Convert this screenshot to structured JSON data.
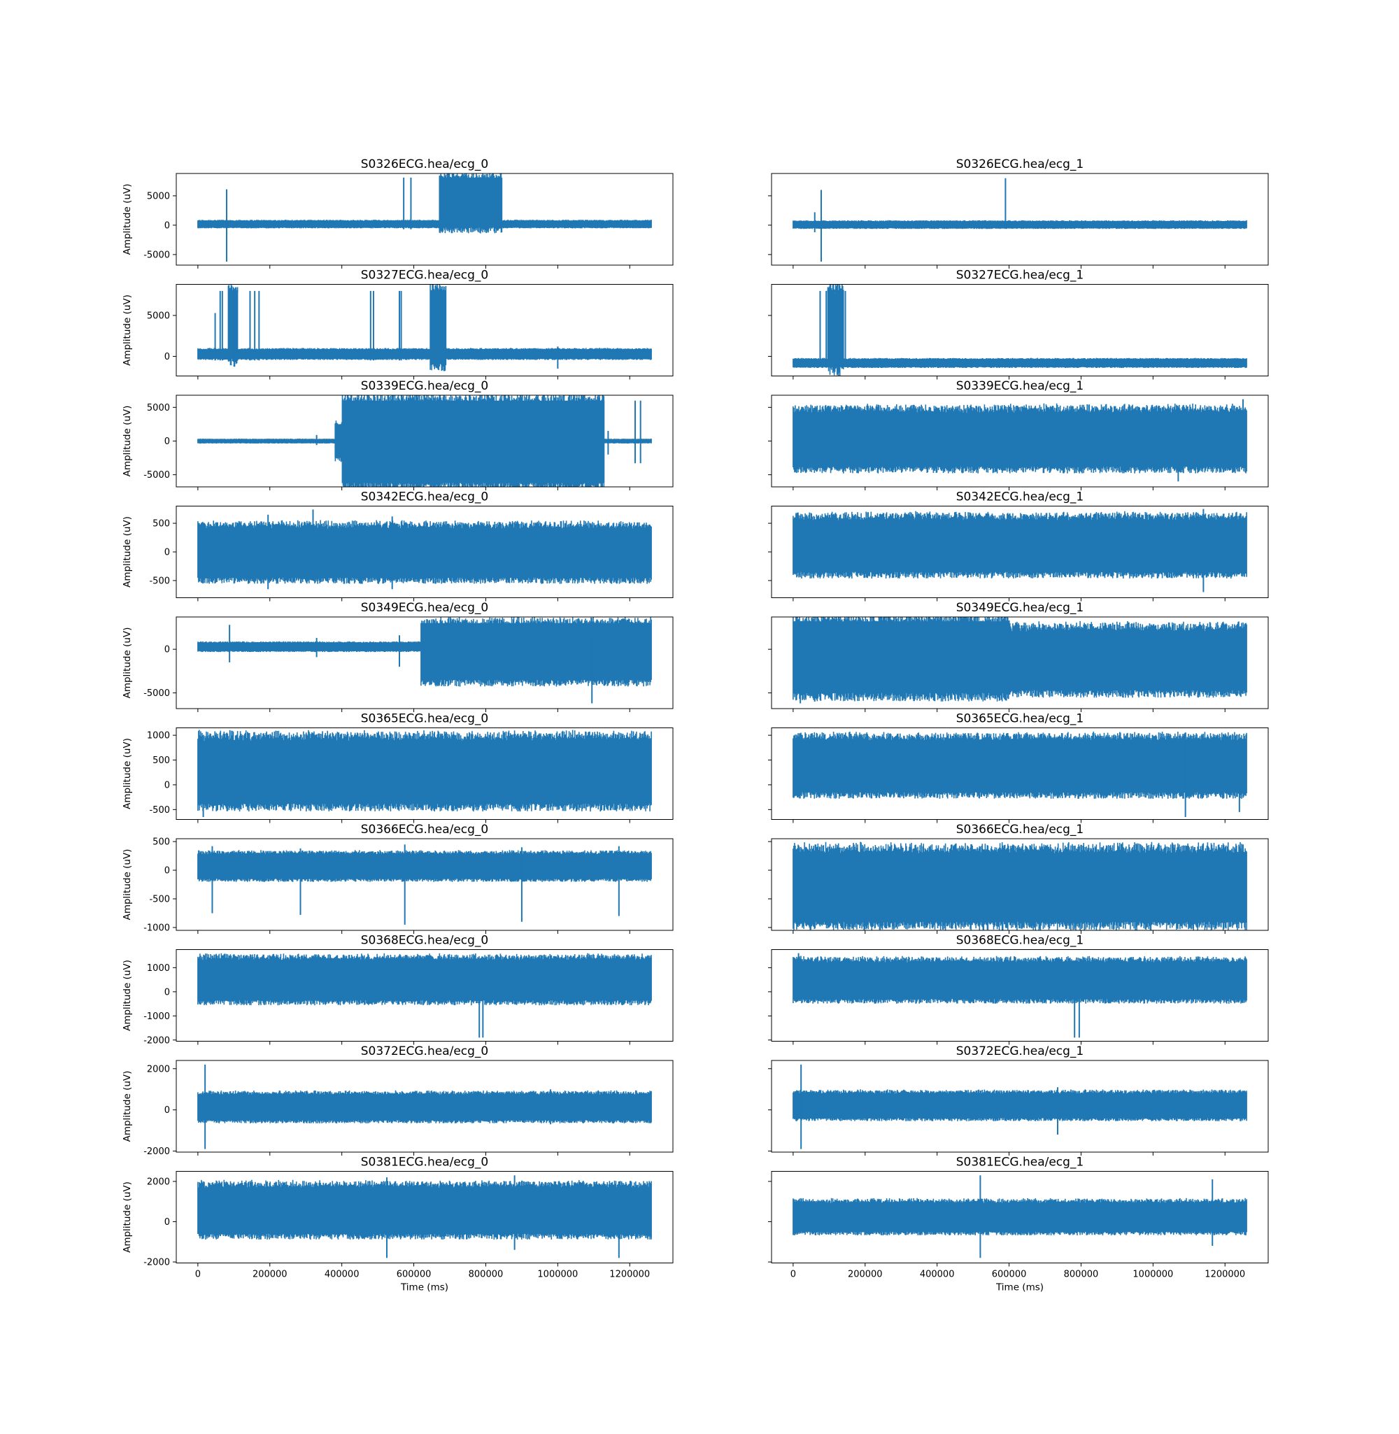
{
  "figure": {
    "xlabel": "Time (ms)",
    "ylabel": "Amplitude (uV)",
    "line_color": "#1f77b4"
  },
  "chart_data": [
    {
      "type": "line",
      "title": "S0326ECG.hea/ecg_0",
      "xlim": [
        -60000,
        1320000
      ],
      "ylim": [
        -6800,
        8800
      ],
      "yticks": [
        -5000,
        0,
        5000
      ],
      "x_range": [
        0,
        1260000
      ],
      "base": [
        -400,
        800
      ],
      "spikes": [
        [
          80000,
          -6200,
          6100
        ],
        [
          572000,
          -700,
          8100
        ],
        [
          592000,
          -700,
          8100
        ]
      ],
      "blocks": [
        [
          670000,
          845000,
          -400,
          8100
        ]
      ]
    },
    {
      "type": "line",
      "title": "S0326ECG.hea/ecg_1",
      "xlim": [
        -60000,
        1320000
      ],
      "ylim": [
        -6800,
        8800
      ],
      "yticks": [
        -5000,
        0,
        5000
      ],
      "x_range": [
        0,
        1260000
      ],
      "base": [
        -500,
        700
      ],
      "spikes": [
        [
          78000,
          -6200,
          6000
        ],
        [
          60000,
          -1200,
          2200
        ],
        [
          590000,
          -400,
          8000
        ]
      ],
      "blocks": []
    },
    {
      "type": "line",
      "title": "S0327ECG.hea/ecg_0",
      "xlim": [
        -60000,
        1320000
      ],
      "ylim": [
        -2400,
        8800
      ],
      "yticks": [
        0,
        5000
      ],
      "x_range": [
        0,
        1260000
      ],
      "base": [
        -300,
        900
      ],
      "spikes": [
        [
          48000,
          -500,
          5300
        ],
        [
          62000,
          -500,
          8000
        ],
        [
          68000,
          -500,
          8000
        ],
        [
          100000,
          -500,
          8000
        ],
        [
          108000,
          -500,
          8000
        ],
        [
          145000,
          -500,
          8000
        ],
        [
          158000,
          -500,
          8000
        ],
        [
          170000,
          -500,
          8000
        ],
        [
          480000,
          -500,
          8000
        ],
        [
          488000,
          -500,
          8000
        ],
        [
          560000,
          -500,
          8000
        ],
        [
          565000,
          -500,
          8000
        ],
        [
          1000000,
          -1500,
          1200
        ]
      ],
      "blocks": [
        [
          84000,
          112000,
          7800,
          8100
        ],
        [
          645000,
          690000,
          -800,
          8100
        ]
      ]
    },
    {
      "type": "line",
      "title": "S0327ECG.hea/ecg_1",
      "xlim": [
        -60000,
        1320000
      ],
      "ylim": [
        -2400,
        8800
      ],
      "yticks": [
        0,
        5000
      ],
      "x_range": [
        0,
        1260000
      ],
      "base": [
        -1300,
        -300
      ],
      "spikes": [
        [
          75000,
          -1300,
          8000
        ],
        [
          92000,
          -1300,
          8000
        ],
        [
          118000,
          -1300,
          8000
        ],
        [
          130000,
          -1300,
          8000
        ],
        [
          138000,
          -1300,
          8000
        ],
        [
          145000,
          -1300,
          8000
        ]
      ],
      "blocks": [
        [
          95000,
          140000,
          7800,
          8100
        ]
      ]
    },
    {
      "type": "line",
      "title": "S0339ECG.hea/ecg_0",
      "xlim": [
        -60000,
        1320000
      ],
      "ylim": [
        -6800,
        6800
      ],
      "yticks": [
        -5000,
        0,
        5000
      ],
      "x_range": [
        0,
        1260000
      ],
      "base": [
        -300,
        300
      ],
      "spikes": [
        [
          330000,
          -600,
          900
        ],
        [
          1140000,
          -2000,
          1500
        ],
        [
          1215000,
          -3300,
          6000
        ],
        [
          1230000,
          -3300,
          6000
        ]
      ],
      "blocks": [
        [
          400000,
          1130000,
          -6200,
          6000
        ],
        [
          380000,
          400000,
          -2500,
          2500
        ]
      ]
    },
    {
      "type": "line",
      "title": "S0339ECG.hea/ecg_1",
      "xlim": [
        -60000,
        1320000
      ],
      "ylim": [
        -6800,
        6800
      ],
      "yticks": [
        -5000,
        0,
        5000
      ],
      "x_range": [
        0,
        1260000
      ],
      "base": [
        -3800,
        4600
      ],
      "spikes": [
        [
          1070000,
          -6000,
          5000
        ],
        [
          1250000,
          -4000,
          6200
        ]
      ],
      "blocks": []
    },
    {
      "type": "line",
      "title": "S0342ECG.hea/ecg_0",
      "xlim": [
        -60000,
        1320000
      ],
      "ylim": [
        -800,
        800
      ],
      "yticks": [
        -500,
        0,
        500
      ],
      "x_range": [
        0,
        1260000
      ],
      "base": [
        -450,
        450
      ],
      "spikes": [
        [
          195000,
          -650,
          650
        ],
        [
          320000,
          -500,
          740
        ],
        [
          540000,
          -650,
          620
        ]
      ],
      "blocks": []
    },
    {
      "type": "line",
      "title": "S0342ECG.hea/ecg_1",
      "xlim": [
        -60000,
        1320000
      ],
      "ylim": [
        -800,
        800
      ],
      "yticks": [
        -500,
        0,
        500
      ],
      "x_range": [
        0,
        1260000
      ],
      "base": [
        -350,
        600
      ],
      "spikes": [
        [
          1140000,
          -700,
          750
        ]
      ],
      "blocks": []
    },
    {
      "type": "line",
      "title": "S0349ECG.hea/ecg_0",
      "xlim": [
        -60000,
        1320000
      ],
      "ylim": [
        -6800,
        3700
      ],
      "yticks": [
        -5000,
        0
      ],
      "x_range": [
        0,
        1260000
      ],
      "base": [
        -200,
        800
      ],
      "spikes": [
        [
          88000,
          -1500,
          2800
        ],
        [
          330000,
          -900,
          1300
        ],
        [
          560000,
          -2000,
          1600
        ],
        [
          1095000,
          -6200,
          1500
        ]
      ],
      "blocks": [
        [
          620000,
          1260000,
          -3500,
          3000
        ]
      ]
    },
    {
      "type": "line",
      "title": "S0349ECG.hea/ecg_1",
      "xlim": [
        -60000,
        1320000
      ],
      "ylim": [
        -6800,
        3700
      ],
      "yticks": [
        -5000,
        0
      ],
      "x_range": [
        0,
        1260000
      ],
      "base": [
        -4700,
        2400
      ],
      "spikes": [
        [
          20000,
          -6200,
          3200
        ],
        [
          60000,
          -6000,
          3000
        ],
        [
          600000,
          -5200,
          3300
        ]
      ],
      "blocks": [
        [
          0,
          170000,
          -5000,
          3200
        ],
        [
          170000,
          600000,
          -5000,
          3200
        ]
      ]
    },
    {
      "type": "line",
      "title": "S0365ECG.hea/ecg_0",
      "xlim": [
        -60000,
        1320000
      ],
      "ylim": [
        -700,
        1150
      ],
      "yticks": [
        -500,
        0,
        500,
        1000
      ],
      "x_range": [
        0,
        1260000
      ],
      "base": [
        -380,
        950
      ],
      "spikes": [
        [
          15000,
          -650,
          1000
        ],
        [
          1210000,
          -400,
          1080
        ]
      ],
      "blocks": []
    },
    {
      "type": "line",
      "title": "S0365ECG.hea/ecg_1",
      "xlim": [
        -60000,
        1320000
      ],
      "ylim": [
        -700,
        1150
      ],
      "yticks": [
        -500,
        0,
        500,
        1000
      ],
      "x_range": [
        0,
        1260000
      ],
      "base": [
        -150,
        950
      ],
      "spikes": [
        [
          1090000,
          -650,
          1050
        ],
        [
          1240000,
          -550,
          900
        ]
      ],
      "blocks": []
    },
    {
      "type": "line",
      "title": "S0366ECG.hea/ecg_0",
      "xlim": [
        -60000,
        1320000
      ],
      "ylim": [
        -1050,
        550
      ],
      "yticks": [
        -1000,
        -500,
        0,
        500
      ],
      "x_range": [
        0,
        1260000
      ],
      "base": [
        -150,
        300
      ],
      "spikes": [
        [
          40000,
          -750,
          420
        ],
        [
          285000,
          -780,
          380
        ],
        [
          575000,
          -950,
          450
        ],
        [
          900000,
          -900,
          400
        ],
        [
          1170000,
          -800,
          420
        ]
      ],
      "blocks": []
    },
    {
      "type": "line",
      "title": "S0366ECG.hea/ecg_1",
      "xlim": [
        -60000,
        1320000
      ],
      "ylim": [
        -1050,
        550
      ],
      "yticks": [
        -1000,
        -500,
        0,
        500
      ],
      "x_range": [
        0,
        1260000
      ],
      "base": [
        -900,
        350
      ],
      "spikes": [
        [
          300000,
          -900,
          400
        ],
        [
          1250000,
          -900,
          450
        ]
      ],
      "blocks": []
    },
    {
      "type": "line",
      "title": "S0368ECG.hea/ecg_0",
      "xlim": [
        -60000,
        1320000
      ],
      "ylim": [
        -2050,
        1750
      ],
      "yticks": [
        -2000,
        -1000,
        0,
        1000
      ],
      "x_range": [
        0,
        1260000
      ],
      "base": [
        -350,
        1400
      ],
      "spikes": [
        [
          782000,
          -1900,
          -300
        ],
        [
          792000,
          -1900,
          -300
        ]
      ],
      "blocks": []
    },
    {
      "type": "line",
      "title": "S0368ECG.hea/ecg_1",
      "xlim": [
        -60000,
        1320000
      ],
      "ylim": [
        -2050,
        1750
      ],
      "yticks": [
        -2000,
        -1000,
        0,
        1000
      ],
      "x_range": [
        0,
        1260000
      ],
      "base": [
        -300,
        1300
      ],
      "spikes": [
        [
          782000,
          -1900,
          -300
        ],
        [
          795000,
          -1900,
          -300
        ],
        [
          15000,
          -300,
          1600
        ]
      ],
      "blocks": []
    },
    {
      "type": "line",
      "title": "S0372ECG.hea/ecg_0",
      "xlim": [
        -60000,
        1320000
      ],
      "ylim": [
        -2050,
        2400
      ],
      "yticks": [
        -2000,
        0,
        2000
      ],
      "x_range": [
        0,
        1260000
      ],
      "base": [
        -500,
        800
      ],
      "spikes": [
        [
          20000,
          -1900,
          2200
        ],
        [
          980000,
          -700,
          1000
        ]
      ],
      "blocks": []
    },
    {
      "type": "line",
      "title": "S0372ECG.hea/ecg_1",
      "xlim": [
        -60000,
        1320000
      ],
      "ylim": [
        -2050,
        2400
      ],
      "yticks": [
        -2000,
        0,
        2000
      ],
      "x_range": [
        0,
        1260000
      ],
      "base": [
        -400,
        850
      ],
      "spikes": [
        [
          22000,
          -1900,
          2200
        ],
        [
          735000,
          -1200,
          1100
        ]
      ],
      "blocks": []
    },
    {
      "type": "line",
      "title": "S0381ECG.hea/ecg_0",
      "xlim": [
        -60000,
        1320000
      ],
      "ylim": [
        -2050,
        2500
      ],
      "yticks": [
        -2000,
        0,
        2000
      ],
      "x_range": [
        0,
        1260000
      ],
      "base": [
        -600,
        1800
      ],
      "spikes": [
        [
          525000,
          -1800,
          2200
        ],
        [
          1170000,
          -1800,
          2000
        ],
        [
          880000,
          -1400,
          2300
        ]
      ],
      "blocks": []
    },
    {
      "type": "line",
      "title": "S0381ECG.hea/ecg_1",
      "xlim": [
        -60000,
        1320000
      ],
      "ylim": [
        -2050,
        2500
      ],
      "yticks": [
        -2000,
        0,
        2000
      ],
      "x_range": [
        0,
        1260000
      ],
      "base": [
        -500,
        1000
      ],
      "spikes": [
        [
          520000,
          -1800,
          2300
        ],
        [
          1165000,
          -1200,
          2100
        ]
      ],
      "blocks": []
    }
  ],
  "xticks": [
    0,
    200000,
    400000,
    600000,
    800000,
    1000000,
    1200000
  ]
}
